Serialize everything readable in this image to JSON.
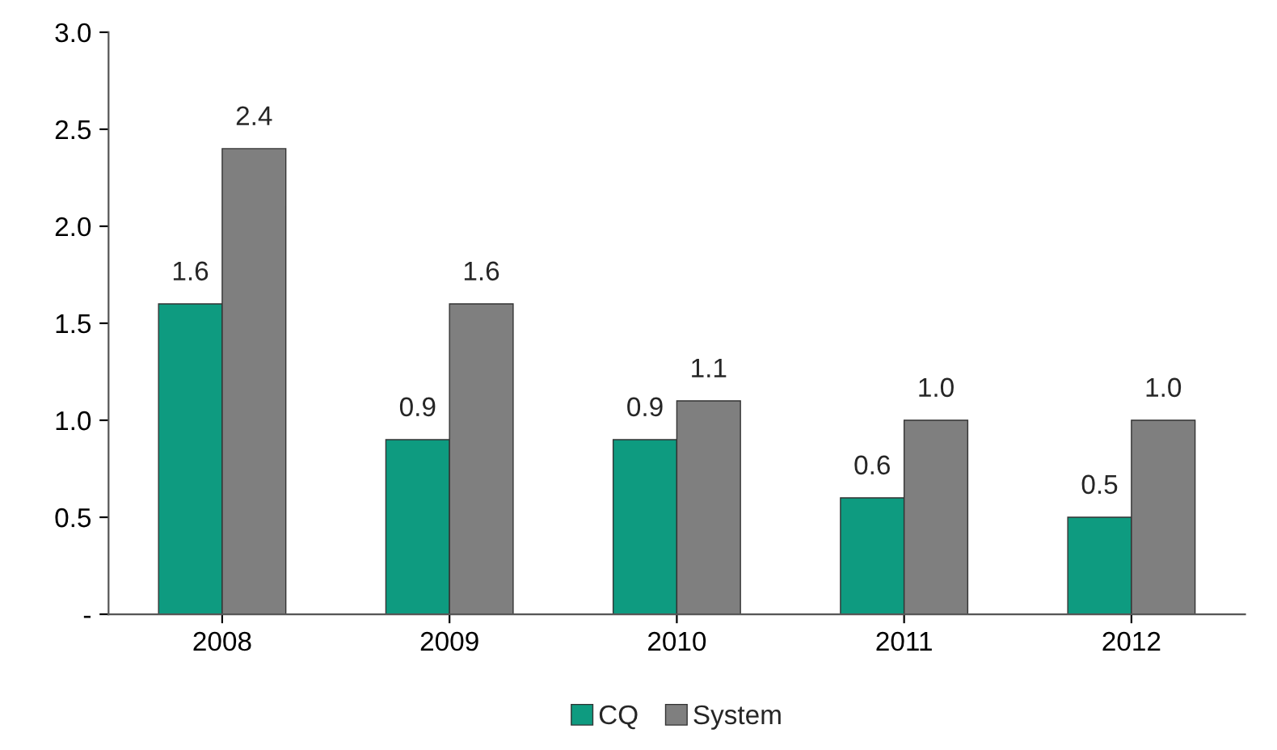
{
  "chart_data": {
    "type": "bar",
    "categories": [
      "2008",
      "2009",
      "2010",
      "2011",
      "2012"
    ],
    "series": [
      {
        "name": "CQ",
        "color": "#0e9b80",
        "values": [
          1.6,
          0.9,
          0.9,
          0.6,
          0.5
        ],
        "value_labels": [
          "1.6",
          "0.9",
          "0.9",
          "0.6",
          "0.5"
        ]
      },
      {
        "name": "System",
        "color": "#7f7f7f",
        "values": [
          2.4,
          1.6,
          1.1,
          1.0,
          1.0
        ],
        "value_labels": [
          "2.4",
          "1.6",
          "1.1",
          "1.0",
          "1.0"
        ]
      }
    ],
    "ylim": [
      0,
      3.0
    ],
    "yticks": [
      {
        "value": 0,
        "label": "-"
      },
      {
        "value": 0.5,
        "label": "0.5"
      },
      {
        "value": 1.0,
        "label": "1.0"
      },
      {
        "value": 1.5,
        "label": "1.5"
      },
      {
        "value": 2.0,
        "label": "2.0"
      },
      {
        "value": 2.5,
        "label": "2.5"
      },
      {
        "value": 3.0,
        "label": "3.0"
      }
    ],
    "grid": false,
    "legend": "bottom"
  }
}
